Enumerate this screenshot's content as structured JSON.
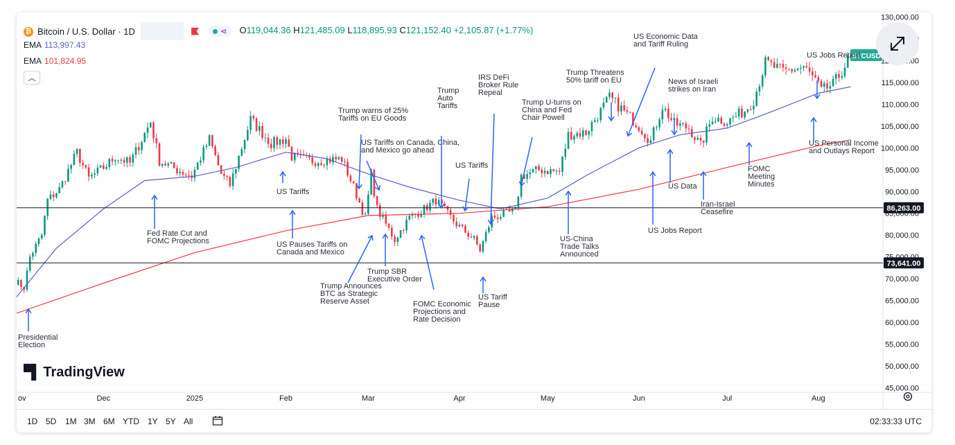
{
  "header": {
    "symbol_title": "Bitcoin / U.S. Dollar · 1D",
    "ohlc": {
      "o_label": "O",
      "o": "119,044.36",
      "h_label": "H",
      "h": "121,485.09",
      "l_label": "L",
      "l": "118,895.93",
      "c_label": "C",
      "c": "121,152.40",
      "change": "+2,105.87 (+1.77%)"
    },
    "ema1": {
      "label": "EMA",
      "value": "113,997.43"
    },
    "ema2": {
      "label": "EMA",
      "value": "101,824.95"
    },
    "collapse_icon": "chevron-up-icon"
  },
  "price_labels": {
    "last": "BTCUSD",
    "line_upper": "86,263.00",
    "line_lower": "73,641.00"
  },
  "logo_text": "TradingView",
  "timeframes": [
    "1D",
    "5D",
    "1M",
    "3M",
    "6M",
    "YTD",
    "1Y",
    "5Y",
    "All"
  ],
  "clock": "02:33:33 UTC",
  "icons": {
    "expand": "expand-arrows-icon",
    "calendar": "calendar-range-icon",
    "settings": "settings-icon",
    "symbol": "bitcoin-icon"
  },
  "colors": {
    "up": "#089981",
    "down": "#f23645",
    "ema_fast": "#5b5fc7",
    "ema_slow": "#f23645",
    "annotation": "#2962ff",
    "last_price": "#22ab94"
  },
  "chart_data": {
    "type": "candlestick",
    "title": "Bitcoin / U.S. Dollar · 1D",
    "y_range": [
      44000,
      131000
    ],
    "y_ticks": [
      45000,
      50000,
      55000,
      60000,
      65000,
      70000,
      75000,
      80000,
      85000,
      90000,
      95000,
      100000,
      105000,
      110000,
      115000,
      120000,
      125000,
      130000
    ],
    "x_range": [
      "2024-11-01",
      "2025-08-14"
    ],
    "x_ticks": [
      {
        "date": "2024-11-01",
        "label": "ov"
      },
      {
        "date": "2024-12-01",
        "label": "Dec"
      },
      {
        "date": "2025-01-01",
        "label": "2025"
      },
      {
        "date": "2025-02-01",
        "label": "Feb"
      },
      {
        "date": "2025-03-01",
        "label": "Mar"
      },
      {
        "date": "2025-04-01",
        "label": "Apr"
      },
      {
        "date": "2025-05-01",
        "label": "May"
      },
      {
        "date": "2025-06-01",
        "label": "Jun"
      },
      {
        "date": "2025-07-01",
        "label": "Jul"
      },
      {
        "date": "2025-08-01",
        "label": "Aug"
      }
    ],
    "price_path": [
      [
        "2024-11-01",
        69500
      ],
      [
        "2024-11-04",
        68000
      ],
      [
        "2024-11-06",
        75000
      ],
      [
        "2024-11-10",
        80000
      ],
      [
        "2024-11-12",
        88000
      ],
      [
        "2024-11-16",
        90500
      ],
      [
        "2024-11-22",
        99000
      ],
      [
        "2024-11-26",
        93000
      ],
      [
        "2024-12-02",
        96000
      ],
      [
        "2024-12-05",
        98000
      ],
      [
        "2024-12-10",
        96500
      ],
      [
        "2024-12-17",
        106000
      ],
      [
        "2024-12-20",
        97000
      ],
      [
        "2024-12-26",
        95000
      ],
      [
        "2024-12-31",
        93500
      ],
      [
        "2025-01-06",
        102000
      ],
      [
        "2025-01-10",
        94000
      ],
      [
        "2025-01-13",
        91500
      ],
      [
        "2025-01-20",
        106500
      ],
      [
        "2025-01-27",
        101000
      ],
      [
        "2025-02-01",
        102000
      ],
      [
        "2025-02-03",
        98000
      ],
      [
        "2025-02-10",
        97000
      ],
      [
        "2025-02-20",
        97500
      ],
      [
        "2025-02-24",
        91000
      ],
      [
        "2025-02-28",
        84000
      ],
      [
        "2025-03-02",
        94000
      ],
      [
        "2025-03-04",
        86000
      ],
      [
        "2025-03-10",
        79000
      ],
      [
        "2025-03-15",
        84000
      ],
      [
        "2025-03-20",
        86000
      ],
      [
        "2025-03-24",
        88000
      ],
      [
        "2025-03-31",
        82500
      ],
      [
        "2025-04-06",
        79000
      ],
      [
        "2025-04-08",
        76500
      ],
      [
        "2025-04-12",
        84000
      ],
      [
        "2025-04-20",
        85500
      ],
      [
        "2025-04-22",
        93500
      ],
      [
        "2025-04-28",
        95000
      ],
      [
        "2025-05-05",
        94500
      ],
      [
        "2025-05-08",
        103000
      ],
      [
        "2025-05-14",
        103500
      ],
      [
        "2025-05-22",
        111500
      ],
      [
        "2025-05-26",
        109000
      ],
      [
        "2025-06-01",
        105000
      ],
      [
        "2025-06-05",
        101500
      ],
      [
        "2025-06-09",
        109500
      ],
      [
        "2025-06-13",
        105500
      ],
      [
        "2025-06-18",
        104500
      ],
      [
        "2025-06-22",
        100500
      ],
      [
        "2025-06-26",
        107000
      ],
      [
        "2025-07-01",
        106000
      ],
      [
        "2025-07-07",
        108500
      ],
      [
        "2025-07-10",
        111000
      ],
      [
        "2025-07-14",
        119500
      ],
      [
        "2025-07-20",
        117500
      ],
      [
        "2025-07-27",
        118500
      ],
      [
        "2025-07-31",
        115500
      ],
      [
        "2025-08-02",
        113000
      ],
      [
        "2025-08-06",
        114500
      ],
      [
        "2025-08-08",
        116500
      ],
      [
        "2025-08-12",
        121152
      ]
    ],
    "ema_fast_path": [
      [
        "2024-11-01",
        65500
      ],
      [
        "2024-11-15",
        77000
      ],
      [
        "2024-12-01",
        86000
      ],
      [
        "2024-12-15",
        92500
      ],
      [
        "2025-01-01",
        93500
      ],
      [
        "2025-01-15",
        95500
      ],
      [
        "2025-02-01",
        99000
      ],
      [
        "2025-02-15",
        97500
      ],
      [
        "2025-03-01",
        94000
      ],
      [
        "2025-03-15",
        91000
      ],
      [
        "2025-04-01",
        88000
      ],
      [
        "2025-04-15",
        86000
      ],
      [
        "2025-05-01",
        88500
      ],
      [
        "2025-05-15",
        94000
      ],
      [
        "2025-06-01",
        100000
      ],
      [
        "2025-06-15",
        103000
      ],
      [
        "2025-07-01",
        104500
      ],
      [
        "2025-07-15",
        108000
      ],
      [
        "2025-08-01",
        112500
      ],
      [
        "2025-08-12",
        114000
      ]
    ],
    "ema_slow_path": [
      [
        "2024-11-01",
        62000
      ],
      [
        "2024-12-01",
        69000
      ],
      [
        "2025-01-01",
        76000
      ],
      [
        "2025-02-01",
        81000
      ],
      [
        "2025-03-01",
        84500
      ],
      [
        "2025-04-01",
        85000
      ],
      [
        "2025-05-01",
        86500
      ],
      [
        "2025-06-01",
        90500
      ],
      [
        "2025-07-01",
        95500
      ],
      [
        "2025-08-01",
        100500
      ],
      [
        "2025-08-12",
        101825
      ]
    ],
    "horizontal_lines": [
      86263,
      73641
    ],
    "last_price": 121152.4,
    "annotations": [
      {
        "text": [
          "Presidential",
          "Election"
        ],
        "date": "2024-11-05"
      },
      {
        "text": [
          "Fed Rate Cut and",
          "FOMC Projections"
        ],
        "date": "2024-12-18"
      },
      {
        "text": [
          "US Tariffs"
        ],
        "date": "2025-02-01"
      },
      {
        "text": [
          "US Pauses Tariffs on",
          "Canada and Mexico"
        ],
        "date": "2025-02-03"
      },
      {
        "text": [
          "Trump warns of 25%",
          "Tariffs on EU Goods"
        ],
        "date": "2025-02-26"
      },
      {
        "text": [
          "US Tariffs on Canada, China,",
          "and Mexico go ahead"
        ],
        "date": "2025-03-04"
      },
      {
        "text": [
          "Trump Announces",
          "BTC as Strategic",
          "Reserve Asset"
        ],
        "date": "2025-03-02"
      },
      {
        "text": [
          "Trump SBR",
          "Executive Order"
        ],
        "date": "2025-03-06"
      },
      {
        "text": [
          "FOMC Economic",
          "Projections and",
          "Rate Decision"
        ],
        "date": "2025-03-19"
      },
      {
        "text": [
          "Trump",
          "Auto",
          "Tariffs"
        ],
        "date": "2025-03-26"
      },
      {
        "text": [
          "US Tariffs"
        ],
        "date": "2025-04-02"
      },
      {
        "text": [
          "IRS DeFi",
          "Broker Rule",
          "Repeal"
        ],
        "date": "2025-04-10"
      },
      {
        "text": [
          "US Tariff",
          "Pause"
        ],
        "date": "2025-04-09"
      },
      {
        "text": [
          "Trump U-turns on",
          "China and Fed",
          "Chair Powell"
        ],
        "date": "2025-04-22"
      },
      {
        "text": [
          "US-China",
          "Trade Talks",
          "Announced"
        ],
        "date": "2025-05-07"
      },
      {
        "text": [
          "Trump Threatens",
          "50% tariff on EU"
        ],
        "date": "2025-05-23"
      },
      {
        "text": [
          "US Economic Data",
          "and Tariff Ruling"
        ],
        "date": "2025-05-29"
      },
      {
        "text": [
          "US Jobs Report"
        ],
        "date": "2025-06-06"
      },
      {
        "text": [
          "News of Israeli",
          "strikes on Iran"
        ],
        "date": "2025-06-13"
      },
      {
        "text": [
          "US Data"
        ],
        "date": "2025-06-11"
      },
      {
        "text": [
          "Iran-Israel",
          "Ceasefire"
        ],
        "date": "2025-06-24"
      },
      {
        "text": [
          "FOMC",
          "Meeting",
          "Minutes"
        ],
        "date": "2025-07-09"
      },
      {
        "text": [
          "US Jobs Report"
        ],
        "date": "2025-08-01"
      },
      {
        "text": [
          "US Personal Income",
          "and Outlays Report"
        ],
        "date": "2025-07-31"
      }
    ]
  }
}
